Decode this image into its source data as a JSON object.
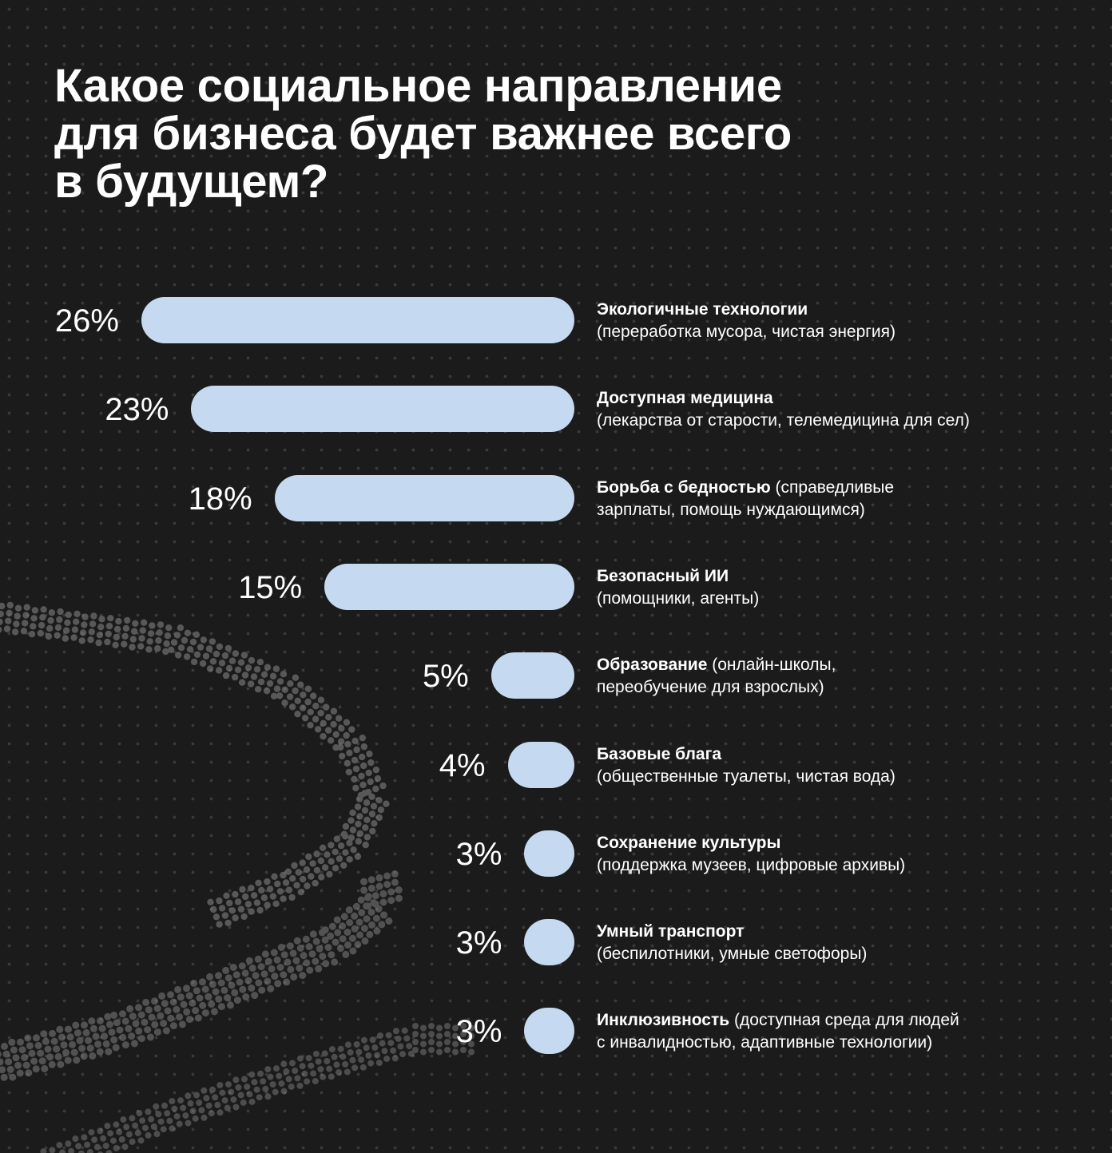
{
  "title": "Какое социальное направление\nдля бизнеса будет важнее всего\nв будущем?",
  "colors": {
    "background": "#1b1b1b",
    "bar": "#c5daf0",
    "text": "#ffffff",
    "pattern_dots": "#3a3a3a",
    "pattern_band": "#8a8a8a"
  },
  "chart_data": {
    "type": "bar",
    "orientation": "horizontal",
    "title": "Какое социальное направление для бизнеса будет важнее всего в будущем?",
    "unit": "%",
    "categories": [
      "Экологичные технологии (переработка мусора, чистая энергия)",
      "Доступная медицина (лекарства от старости, телемедицина для сел)",
      "Борьба с бедностью (справедливые зарплаты, помощь нуждающимся)",
      "Безопасный ИИ (помощники, агенты)",
      "Образование (онлайн-школы, переобучение для взрослых)",
      "Базовые блага (общественные туалеты, чистая вода)",
      "Сохранение культуры (поддержка музеев, цифровые архивы)",
      "Умный транспорт (беспилотники, умные светофоры)",
      "Инклюзивность (доступная среда для людей с инвалидностью, адаптивные технологии)"
    ],
    "values": [
      26,
      23,
      18,
      15,
      5,
      4,
      3,
      3,
      3
    ],
    "rows": [
      {
        "value": 26,
        "label": "26%",
        "name": "Экологичные технологии",
        "rest": "",
        "detail": "(переработка мусора, чистая энергия)"
      },
      {
        "value": 23,
        "label": "23%",
        "name": "Доступная медицина",
        "rest": "",
        "detail": "(лекарства от старости, телемедицина для сел)"
      },
      {
        "value": 18,
        "label": "18%",
        "name": "Борьба с бедностью",
        "rest": " (справедливые",
        "detail": "зарплаты, помощь нуждающимся)"
      },
      {
        "value": 15,
        "label": "15%",
        "name": "Безопасный ИИ",
        "rest": "",
        "detail": "(помощники, агенты)"
      },
      {
        "value": 5,
        "label": "5%",
        "name": "Образование",
        "rest": " (онлайн-школы,",
        "detail": "переобучение для взрослых)"
      },
      {
        "value": 4,
        "label": "4%",
        "name": "Базовые блага",
        "rest": "",
        "detail": "(общественные туалеты, чистая вода)"
      },
      {
        "value": 3,
        "label": "3%",
        "name": "Сохранение культуры",
        "rest": "",
        "detail": "(поддержка музеев, цифровые архивы)"
      },
      {
        "value": 3,
        "label": "3%",
        "name": "Умный транспорт",
        "rest": "",
        "detail": "(беспилотники, умные светофоры)"
      },
      {
        "value": 3,
        "label": "3%",
        "name": "Инклюзивность",
        "rest": " (доступная среда для людей",
        "detail": "с инвалидностью, адаптивные технологии)"
      }
    ],
    "xlim": [
      0,
      26
    ],
    "grid": false,
    "legend": "none"
  }
}
